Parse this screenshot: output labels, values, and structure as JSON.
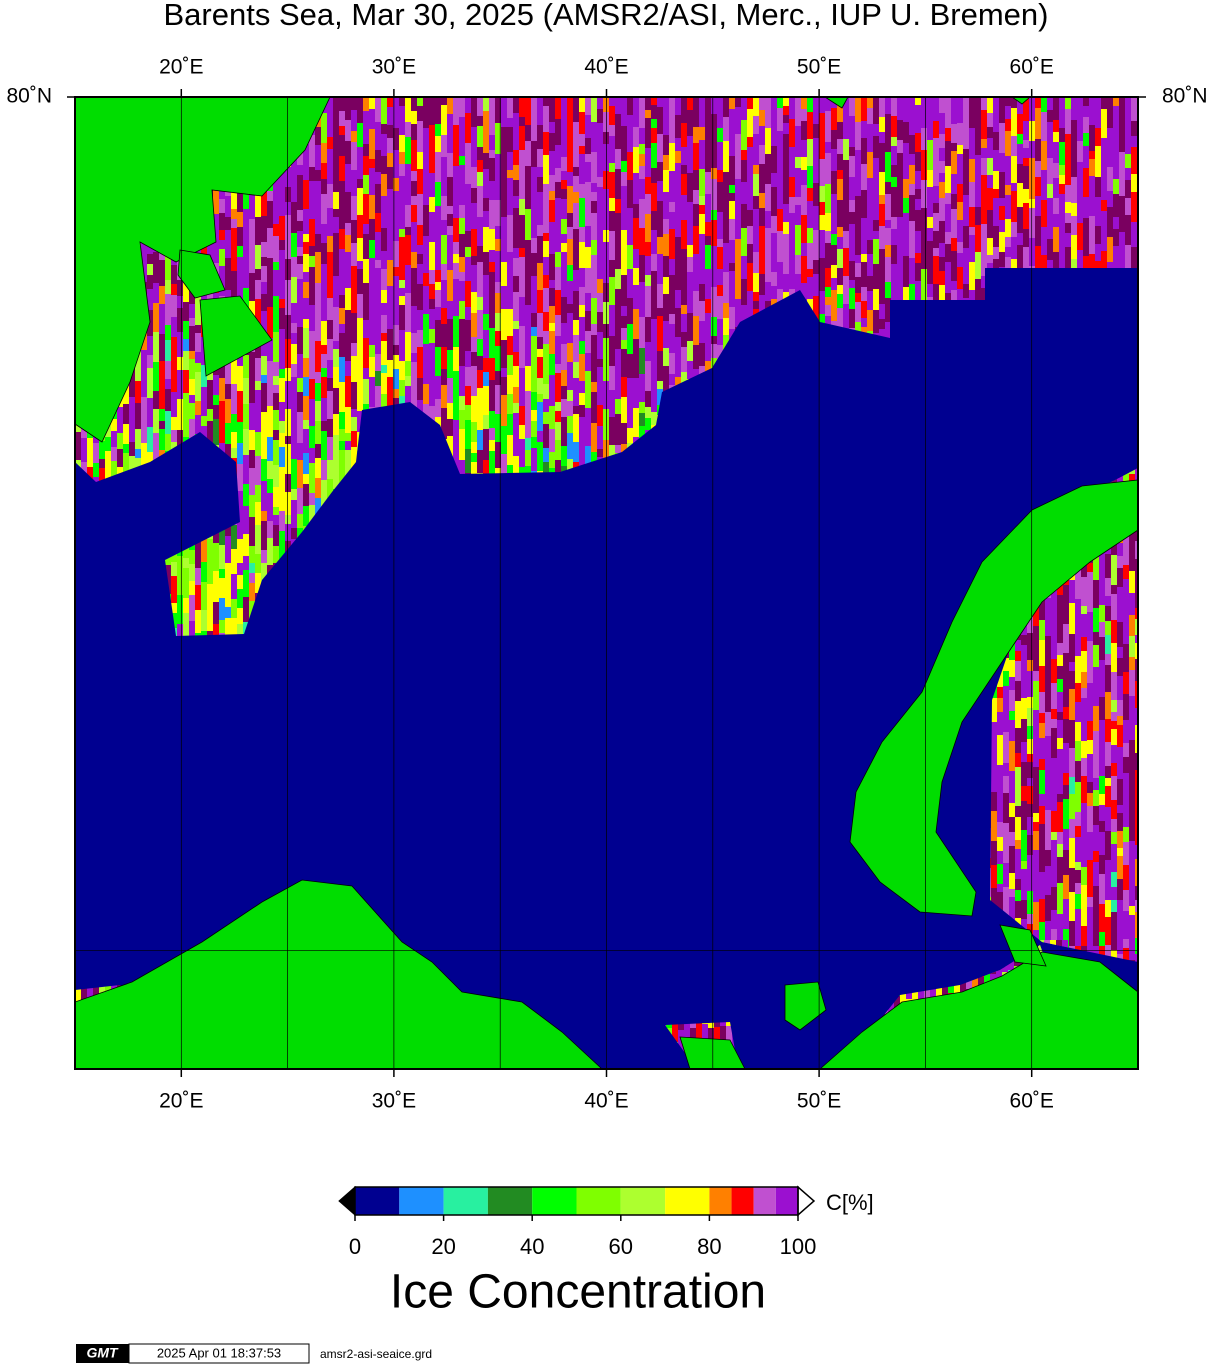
{
  "map": {
    "title": "Barents Sea, Mar 30, 2025 (AMSR2/ASI, Merc., IUP U. Bremen)",
    "lonlim": [
      15,
      65
    ],
    "lon_ticks": [
      {
        "value": 20,
        "label": "20˚E"
      },
      {
        "value": 30,
        "label": "30˚E"
      },
      {
        "value": 40,
        "label": "40˚E"
      },
      {
        "value": 50,
        "label": "50˚E"
      },
      {
        "value": 60,
        "label": "60˚E"
      }
    ],
    "lon_minor": [
      25,
      35,
      45,
      55
    ],
    "lat_ticks": [
      {
        "value": 80,
        "label": "80˚N"
      }
    ],
    "lat_minor": [
      70
    ],
    "colorbar": {
      "label": "Ice Concentration",
      "unit": "C[%]",
      "bounds": [
        0,
        10,
        20,
        30,
        40,
        50,
        60,
        70,
        80,
        85,
        90,
        95,
        100
      ],
      "colors": [
        "#000090",
        "#1e90ff",
        "#28f0a0",
        "#228b22",
        "#00ff00",
        "#7fff00",
        "#adff2f",
        "#ffff00",
        "#ff8000",
        "#ff0000",
        "#c050d0",
        "#9b10d0"
      ],
      "ticks": [
        0,
        20,
        40,
        60,
        80,
        100
      ]
    },
    "footer": {
      "logo": "GMT",
      "timestamp": "2025 Apr 01 18:37:53",
      "filename": "amsr2-asi-seaice.grd"
    }
  }
}
